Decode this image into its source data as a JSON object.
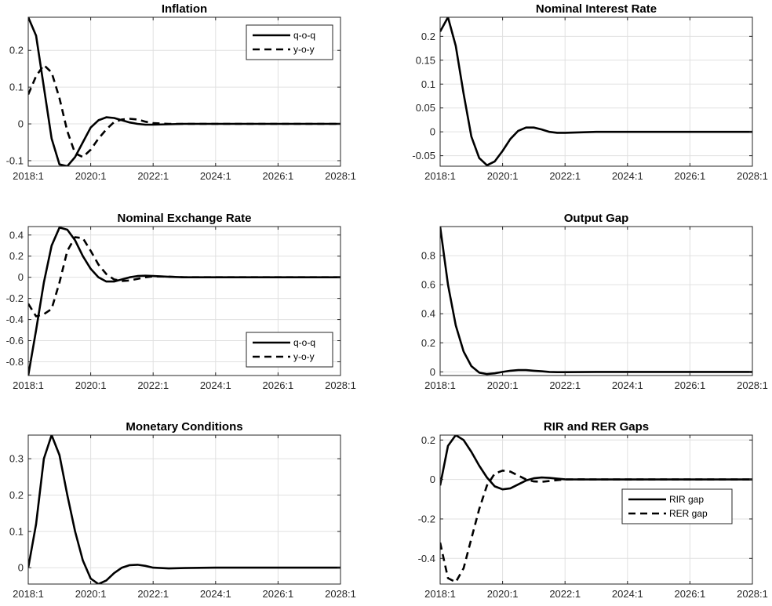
{
  "figure": {
    "colors": {
      "line": "#000000",
      "grid": "#e0e0e0",
      "axes": "#262626",
      "background": "#ffffff"
    }
  },
  "chart_data": [
    {
      "id": "inflation",
      "type": "line",
      "title": "Inflation",
      "xlabel": "",
      "ylabel": "",
      "xlim": [
        2018.0,
        2028.0
      ],
      "ylim": [
        -0.115,
        0.29
      ],
      "x_ticks": [
        2018,
        2020,
        2022,
        2024,
        2026,
        2028
      ],
      "x_tick_labels": [
        "2018:1",
        "2020:1",
        "2022:1",
        "2024:1",
        "2026:1",
        "2028:1"
      ],
      "y_ticks": [
        -0.1,
        0,
        0.1,
        0.2
      ],
      "y_tick_labels": [
        "-0.1",
        "0",
        "0.1",
        "0.2"
      ],
      "grid": true,
      "legend": {
        "position": "top-right",
        "entries": [
          "q-o-q",
          "y-o-y"
        ]
      },
      "series": [
        {
          "name": "q-o-q",
          "style": "solid",
          "x": [
            2018.0,
            2018.25,
            2018.5,
            2018.75,
            2019.0,
            2019.25,
            2019.5,
            2019.75,
            2020.0,
            2020.25,
            2020.5,
            2020.75,
            2021.0,
            2021.25,
            2021.5,
            2021.75,
            2022.0,
            2022.5,
            2023.0,
            2024.0,
            2025.0,
            2026.0,
            2027.0,
            2028.0
          ],
          "y": [
            0.29,
            0.24,
            0.1,
            -0.04,
            -0.11,
            -0.115,
            -0.09,
            -0.05,
            -0.01,
            0.01,
            0.018,
            0.016,
            0.01,
            0.004,
            0.0,
            -0.002,
            -0.002,
            -0.001,
            0.0,
            0.0,
            0.0,
            0.0,
            0.0,
            0.0
          ]
        },
        {
          "name": "y-o-y",
          "style": "dashed",
          "x": [
            2018.0,
            2018.25,
            2018.5,
            2018.75,
            2019.0,
            2019.25,
            2019.5,
            2019.75,
            2020.0,
            2020.25,
            2020.5,
            2020.75,
            2021.0,
            2021.25,
            2021.5,
            2021.75,
            2022.0,
            2022.5,
            2023.0,
            2024.0,
            2025.0,
            2026.0,
            2027.0,
            2028.0
          ],
          "y": [
            0.08,
            0.13,
            0.16,
            0.14,
            0.07,
            -0.02,
            -0.08,
            -0.09,
            -0.07,
            -0.04,
            -0.015,
            0.005,
            0.012,
            0.014,
            0.012,
            0.006,
            0.002,
            0.0,
            0.0,
            0.0,
            0.0,
            0.0,
            0.0,
            0.0
          ]
        }
      ]
    },
    {
      "id": "nominal-interest-rate",
      "type": "line",
      "title": "Nominal Interest Rate",
      "xlabel": "",
      "ylabel": "",
      "xlim": [
        2018.0,
        2028.0
      ],
      "ylim": [
        -0.072,
        0.24
      ],
      "x_ticks": [
        2018,
        2020,
        2022,
        2024,
        2026,
        2028
      ],
      "x_tick_labels": [
        "2018:1",
        "2020:1",
        "2022:1",
        "2024:1",
        "2026:1",
        "2028:1"
      ],
      "y_ticks": [
        -0.05,
        0,
        0.05,
        0.1,
        0.15,
        0.2
      ],
      "y_tick_labels": [
        "-0.05",
        "0",
        "0.05",
        "0.1",
        "0.15",
        "0.2"
      ],
      "grid": true,
      "series": [
        {
          "name": "",
          "style": "solid",
          "x": [
            2018.0,
            2018.25,
            2018.5,
            2018.75,
            2019.0,
            2019.25,
            2019.5,
            2019.75,
            2020.0,
            2020.25,
            2020.5,
            2020.75,
            2021.0,
            2021.25,
            2021.5,
            2021.75,
            2022.0,
            2022.5,
            2023.0,
            2024.0,
            2025.0,
            2026.0,
            2027.0,
            2028.0
          ],
          "y": [
            0.21,
            0.24,
            0.18,
            0.08,
            -0.01,
            -0.055,
            -0.07,
            -0.062,
            -0.04,
            -0.015,
            0.002,
            0.009,
            0.009,
            0.005,
            0.0,
            -0.002,
            -0.002,
            -0.001,
            0.0,
            0.0,
            0.0,
            0.0,
            0.0,
            0.0
          ]
        }
      ]
    },
    {
      "id": "nominal-exchange-rate",
      "type": "line",
      "title": "Nominal Exchange Rate",
      "xlabel": "",
      "ylabel": "",
      "xlim": [
        2018.0,
        2028.0
      ],
      "ylim": [
        -0.93,
        0.48
      ],
      "x_ticks": [
        2018,
        2020,
        2022,
        2024,
        2026,
        2028
      ],
      "x_tick_labels": [
        "2018:1",
        "2020:1",
        "2022:1",
        "2024:1",
        "2026:1",
        "2028:1"
      ],
      "y_ticks": [
        -0.8,
        -0.6,
        -0.4,
        -0.2,
        0,
        0.2,
        0.4
      ],
      "y_tick_labels": [
        "-0.8",
        "-0.6",
        "-0.4",
        "-0.2",
        "0",
        "0.2",
        "0.4"
      ],
      "grid": true,
      "legend": {
        "position": "bottom-right",
        "entries": [
          "q-o-q",
          "y-o-y"
        ]
      },
      "series": [
        {
          "name": "q-o-q",
          "style": "solid",
          "x": [
            2018.0,
            2018.25,
            2018.5,
            2018.75,
            2019.0,
            2019.25,
            2019.5,
            2019.75,
            2020.0,
            2020.25,
            2020.5,
            2020.75,
            2021.0,
            2021.25,
            2021.5,
            2021.75,
            2022.0,
            2022.5,
            2023.0,
            2024.0,
            2025.0,
            2026.0,
            2027.0,
            2028.0
          ],
          "y": [
            -0.93,
            -0.5,
            -0.05,
            0.3,
            0.47,
            0.45,
            0.35,
            0.2,
            0.08,
            0.0,
            -0.04,
            -0.04,
            -0.02,
            0.0,
            0.012,
            0.015,
            0.012,
            0.004,
            0.0,
            0.0,
            0.0,
            0.0,
            0.0,
            0.0
          ]
        },
        {
          "name": "y-o-y",
          "style": "dashed",
          "x": [
            2018.0,
            2018.25,
            2018.5,
            2018.75,
            2019.0,
            2019.25,
            2019.5,
            2019.75,
            2020.0,
            2020.25,
            2020.5,
            2020.75,
            2021.0,
            2021.25,
            2021.5,
            2021.75,
            2022.0,
            2022.5,
            2023.0,
            2024.0,
            2025.0,
            2026.0,
            2027.0,
            2028.0
          ],
          "y": [
            -0.25,
            -0.37,
            -0.35,
            -0.3,
            -0.05,
            0.25,
            0.38,
            0.37,
            0.25,
            0.12,
            0.03,
            -0.02,
            -0.035,
            -0.03,
            -0.015,
            0.0,
            0.008,
            0.006,
            0.0,
            0.0,
            0.0,
            0.0,
            0.0,
            0.0
          ]
        }
      ]
    },
    {
      "id": "output-gap",
      "type": "line",
      "title": "Output Gap",
      "xlabel": "",
      "ylabel": "",
      "xlim": [
        2018.0,
        2028.0
      ],
      "ylim": [
        -0.025,
        1.0
      ],
      "x_ticks": [
        2018,
        2020,
        2022,
        2024,
        2026,
        2028
      ],
      "x_tick_labels": [
        "2018:1",
        "2020:1",
        "2022:1",
        "2024:1",
        "2026:1",
        "2028:1"
      ],
      "y_ticks": [
        0,
        0.2,
        0.4,
        0.6,
        0.8
      ],
      "y_tick_labels": [
        "0",
        "0.2",
        "0.4",
        "0.6",
        "0.8"
      ],
      "grid": true,
      "series": [
        {
          "name": "",
          "style": "solid",
          "x": [
            2018.0,
            2018.25,
            2018.5,
            2018.75,
            2019.0,
            2019.25,
            2019.5,
            2019.75,
            2020.0,
            2020.25,
            2020.5,
            2020.75,
            2021.0,
            2021.25,
            2021.5,
            2021.75,
            2022.0,
            2022.5,
            2023.0,
            2024.0,
            2025.0,
            2026.0,
            2027.0,
            2028.0
          ],
          "y": [
            1.0,
            0.6,
            0.32,
            0.14,
            0.04,
            -0.005,
            -0.015,
            -0.01,
            0.0,
            0.008,
            0.012,
            0.012,
            0.008,
            0.004,
            0.0,
            -0.002,
            -0.002,
            -0.001,
            0.0,
            0.0,
            0.0,
            0.0,
            0.0,
            0.0
          ]
        }
      ]
    },
    {
      "id": "monetary-conditions",
      "type": "line",
      "title": "Monetary Conditions",
      "xlabel": "",
      "ylabel": "",
      "xlim": [
        2018.0,
        2028.0
      ],
      "ylim": [
        -0.045,
        0.365
      ],
      "x_ticks": [
        2018,
        2020,
        2022,
        2024,
        2026,
        2028
      ],
      "x_tick_labels": [
        "2018:1",
        "2020:1",
        "2022:1",
        "2024:1",
        "2026:1",
        "2028:1"
      ],
      "y_ticks": [
        0,
        0.1,
        0.2,
        0.3
      ],
      "y_tick_labels": [
        "0",
        "0.1",
        "0.2",
        "0.3"
      ],
      "grid": true,
      "series": [
        {
          "name": "",
          "style": "solid",
          "x": [
            2018.0,
            2018.25,
            2018.5,
            2018.75,
            2019.0,
            2019.25,
            2019.5,
            2019.75,
            2020.0,
            2020.25,
            2020.5,
            2020.75,
            2021.0,
            2021.25,
            2021.5,
            2021.75,
            2022.0,
            2022.5,
            2023.0,
            2024.0,
            2025.0,
            2026.0,
            2027.0,
            2028.0
          ],
          "y": [
            0.0,
            0.12,
            0.3,
            0.365,
            0.31,
            0.2,
            0.1,
            0.02,
            -0.03,
            -0.045,
            -0.035,
            -0.015,
            0.0,
            0.007,
            0.008,
            0.005,
            0.0,
            -0.002,
            -0.001,
            0.0,
            0.0,
            0.0,
            0.0,
            0.0
          ]
        }
      ]
    },
    {
      "id": "rir-rer-gaps",
      "type": "line",
      "title": "RIR and RER Gaps",
      "xlabel": "",
      "ylabel": "",
      "xlim": [
        2018.0,
        2028.0
      ],
      "ylim": [
        -0.53,
        0.225
      ],
      "x_ticks": [
        2018,
        2020,
        2022,
        2024,
        2026,
        2028
      ],
      "x_tick_labels": [
        "2018:1",
        "2020:1",
        "2022:1",
        "2024:1",
        "2026:1",
        "2028:1"
      ],
      "y_ticks": [
        -0.4,
        -0.2,
        0,
        0.2
      ],
      "y_tick_labels": [
        "-0.4",
        "-0.2",
        "0",
        "0.2"
      ],
      "grid": true,
      "legend": {
        "position": "right",
        "entries": [
          "RIR gap",
          "RER gap"
        ]
      },
      "series": [
        {
          "name": "RIR gap",
          "style": "solid",
          "x": [
            2018.0,
            2018.25,
            2018.5,
            2018.75,
            2019.0,
            2019.25,
            2019.5,
            2019.75,
            2020.0,
            2020.25,
            2020.5,
            2020.75,
            2021.0,
            2021.25,
            2021.5,
            2021.75,
            2022.0,
            2022.5,
            2023.0,
            2024.0,
            2025.0,
            2026.0,
            2027.0,
            2028.0
          ],
          "y": [
            -0.03,
            0.17,
            0.225,
            0.2,
            0.14,
            0.07,
            0.01,
            -0.035,
            -0.05,
            -0.045,
            -0.025,
            -0.005,
            0.006,
            0.01,
            0.008,
            0.004,
            0.001,
            0.0,
            0.0,
            0.0,
            0.0,
            0.0,
            0.0,
            0.0
          ]
        },
        {
          "name": "RER gap",
          "style": "dashed",
          "x": [
            2018.0,
            2018.25,
            2018.5,
            2018.75,
            2019.0,
            2019.25,
            2019.5,
            2019.75,
            2020.0,
            2020.25,
            2020.5,
            2020.75,
            2021.0,
            2021.25,
            2021.5,
            2021.75,
            2022.0,
            2022.5,
            2023.0,
            2024.0,
            2025.0,
            2026.0,
            2027.0,
            2028.0
          ],
          "y": [
            -0.32,
            -0.5,
            -0.52,
            -0.45,
            -0.3,
            -0.15,
            -0.03,
            0.03,
            0.045,
            0.04,
            0.02,
            0.0,
            -0.01,
            -0.012,
            -0.008,
            -0.003,
            0.0,
            0.001,
            0.0,
            0.0,
            0.0,
            0.0,
            0.0,
            0.0
          ]
        }
      ]
    }
  ]
}
